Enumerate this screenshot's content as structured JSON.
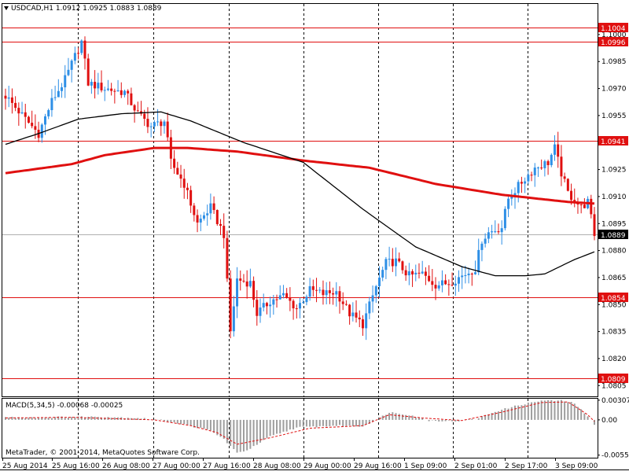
{
  "header": {
    "symbol_line": "USDCAD,H1  1.0912 1.0925 1.0883 1.0889"
  },
  "macd_header": "MACD(5,34,5) -0.00068 -0.00025",
  "copyright": "MetaTrader, © 2001-2014, MetaQuotes Software Corp.",
  "colors": {
    "bull": "#2e8fe6",
    "bear": "#e01010",
    "slow_ma": "#e01010",
    "fast_ma": "#000000",
    "level": "#e01010",
    "macd_hist": "#9e9e9e",
    "macd_signal": "#e01010",
    "grid": "#000000"
  },
  "chart_data": [
    {
      "type": "candlestick",
      "title": "USDCAD,H1",
      "ylim": [
        1.0799,
        1.1017
      ],
      "y_ticks": [
        "1.1000",
        "1.0985",
        "1.0970",
        "1.0955",
        "1.0925",
        "1.0910",
        "1.0895",
        "1.0880",
        "1.0865",
        "1.0850",
        "1.0835",
        "1.0820",
        "1.0805"
      ],
      "x_ticks": [
        "25 Aug 2014",
        "25 Aug 16:00",
        "26 Aug 08:00",
        "27 Aug 00:00",
        "27 Aug 16:00",
        "28 Aug 08:00",
        "29 Aug 00:00",
        "29 Aug 16:00",
        "1 Sep 09:00",
        "2 Sep 01:00",
        "2 Sep 17:00",
        "3 Sep 09:00"
      ],
      "horizontal_levels": [
        "1.1004",
        "1.0996",
        "1.0941",
        "1.0854",
        "1.0809"
      ],
      "current_price": "1.0889",
      "price_path": [
        [
          0,
          1.0966
        ],
        [
          6,
          1.0953
        ],
        [
          10,
          1.0945
        ],
        [
          14,
          1.0963
        ],
        [
          18,
          1.0975
        ],
        [
          21,
          1.0988
        ],
        [
          23,
          1.0996
        ],
        [
          25,
          1.0973
        ],
        [
          30,
          1.097
        ],
        [
          36,
          1.0968
        ],
        [
          40,
          1.0956
        ],
        [
          44,
          1.0949
        ],
        [
          48,
          1.0952
        ],
        [
          50,
          1.0929
        ],
        [
          54,
          1.0917
        ],
        [
          58,
          1.0895
        ],
        [
          62,
          1.0904
        ],
        [
          66,
          1.0889
        ],
        [
          68,
          1.0835
        ],
        [
          70,
          1.0864
        ],
        [
          74,
          1.0862
        ],
        [
          76,
          1.0845
        ],
        [
          80,
          1.0852
        ],
        [
          84,
          1.0855
        ],
        [
          88,
          1.0848
        ],
        [
          92,
          1.0858
        ],
        [
          96,
          1.0856
        ],
        [
          100,
          1.0857
        ],
        [
          104,
          1.0845
        ],
        [
          108,
          1.0839
        ],
        [
          112,
          1.086
        ],
        [
          115,
          1.0873
        ],
        [
          118,
          1.0874
        ],
        [
          122,
          1.0866
        ],
        [
          126,
          1.0867
        ],
        [
          130,
          1.0861
        ],
        [
          134,
          1.0862
        ],
        [
          138,
          1.0866
        ],
        [
          142,
          1.087
        ],
        [
          144,
          1.0886
        ],
        [
          146,
          1.089
        ],
        [
          150,
          1.0893
        ],
        [
          152,
          1.0909
        ],
        [
          156,
          1.0918
        ],
        [
          160,
          1.0926
        ],
        [
          164,
          1.0929
        ],
        [
          166,
          1.0937
        ],
        [
          168,
          1.0923
        ],
        [
          170,
          1.0912
        ],
        [
          174,
          1.0904
        ],
        [
          176,
          1.0907
        ],
        [
          178,
          1.0889
        ]
      ],
      "candle_count": 179,
      "series": [
        {
          "name": "slow MA",
          "x": [
            0,
            20,
            30,
            45,
            55,
            70,
            90,
            110,
            130,
            150,
            160,
            170,
            179
          ],
          "values": [
            1.0923,
            1.0928,
            1.0933,
            1.0937,
            1.0937,
            1.0935,
            1.093,
            1.0926,
            1.0917,
            1.0911,
            1.0909,
            1.0907,
            1.0906
          ]
        },
        {
          "name": "fast MA",
          "x": [
            0,
            10,
            22,
            35,
            47,
            56,
            72,
            90,
            108,
            124,
            138,
            148,
            157,
            163,
            172,
            179
          ],
          "values": [
            1.0939,
            1.0945,
            1.0953,
            1.0956,
            1.0957,
            1.0952,
            1.094,
            1.0929,
            1.0903,
            1.0882,
            1.0871,
            1.0866,
            1.0866,
            1.0867,
            1.0875,
            1.088
          ]
        }
      ]
    },
    {
      "type": "bar",
      "title": "MACD(5,34,5)",
      "ylim": [
        -0.0059,
        0.0033
      ],
      "y_ticks": [
        "0.00307",
        "0.00",
        "-0.0055"
      ],
      "histogram_path": [
        [
          0,
          0.0004
        ],
        [
          12,
          0.0004
        ],
        [
          28,
          0.0005
        ],
        [
          40,
          0.0003
        ],
        [
          48,
          -0.0001
        ],
        [
          54,
          -0.0007
        ],
        [
          62,
          -0.0017
        ],
        [
          66,
          -0.003
        ],
        [
          70,
          -0.0052
        ],
        [
          74,
          -0.0045
        ],
        [
          80,
          -0.0026
        ],
        [
          88,
          -0.0012
        ],
        [
          100,
          -0.0009
        ],
        [
          108,
          -0.001
        ],
        [
          112,
          0.0
        ],
        [
          116,
          0.0012
        ],
        [
          122,
          0.0008
        ],
        [
          128,
          -0.0001
        ],
        [
          136,
          -0.0002
        ],
        [
          142,
          0.0001
        ],
        [
          148,
          0.0013
        ],
        [
          156,
          0.0024
        ],
        [
          162,
          0.003
        ],
        [
          168,
          0.003
        ],
        [
          172,
          0.0026
        ],
        [
          176,
          0.0005
        ],
        [
          178,
          -0.00068
        ]
      ],
      "signal_path": [
        [
          0,
          0.0003
        ],
        [
          20,
          0.0004
        ],
        [
          45,
          0.0
        ],
        [
          56,
          -0.0009
        ],
        [
          64,
          -0.002
        ],
        [
          70,
          -0.0038
        ],
        [
          80,
          -0.0028
        ],
        [
          92,
          -0.0013
        ],
        [
          108,
          -0.0009
        ],
        [
          116,
          0.0008
        ],
        [
          126,
          0.0003
        ],
        [
          138,
          -0.0001
        ],
        [
          150,
          0.0012
        ],
        [
          162,
          0.0027
        ],
        [
          170,
          0.0028
        ],
        [
          176,
          0.0008
        ],
        [
          178,
          -0.00025
        ]
      ]
    }
  ]
}
